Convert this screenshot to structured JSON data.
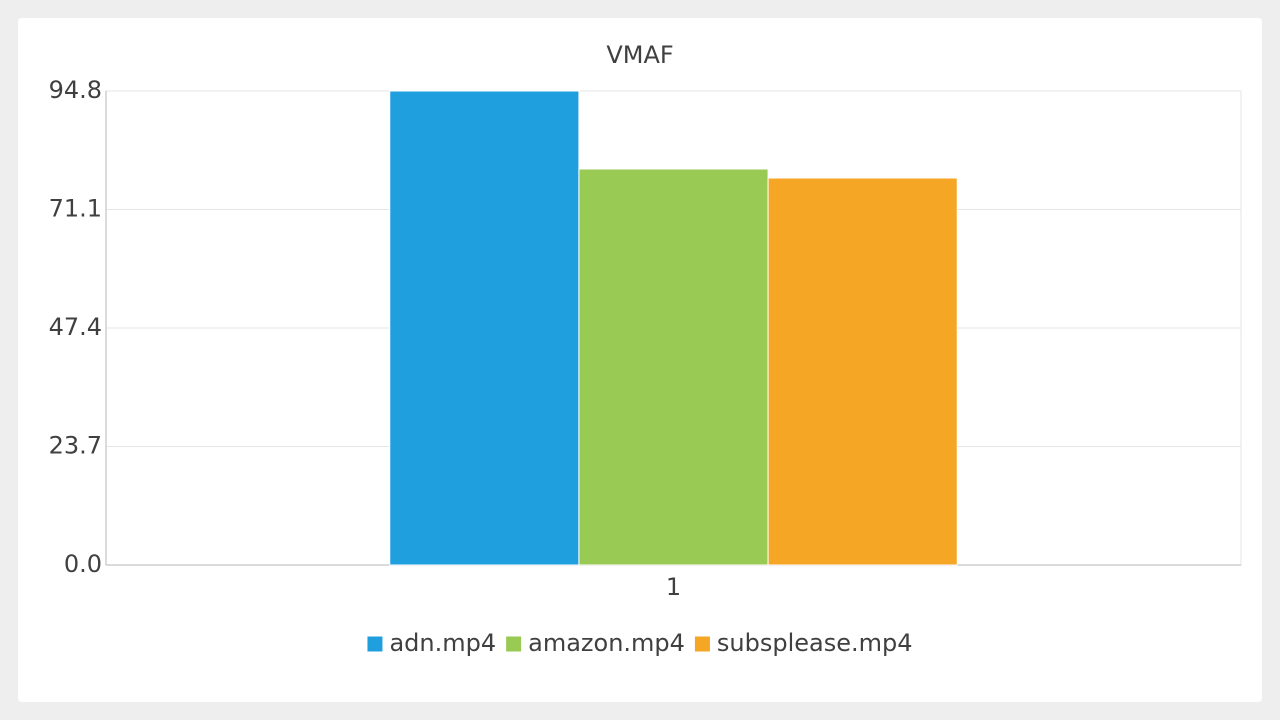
{
  "chart_data": {
    "type": "bar",
    "title": "VMAF",
    "categories": [
      "1"
    ],
    "series": [
      {
        "name": "adn.mp4",
        "color": "#209fdf",
        "values": [
          94.8
        ]
      },
      {
        "name": "amazon.mp4",
        "color": "#99ca53",
        "values": [
          79.2
        ]
      },
      {
        "name": "subsplease.mp4",
        "color": "#f6a625",
        "values": [
          77.4
        ]
      }
    ],
    "ylim": [
      0,
      94.8
    ],
    "yticks": [
      {
        "value": 0,
        "label": "0.0"
      },
      23.7,
      47.4,
      71.1,
      94.8
    ],
    "grid": true,
    "legend": "bottom"
  }
}
